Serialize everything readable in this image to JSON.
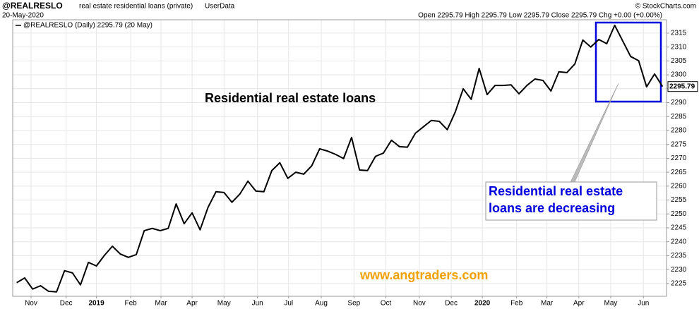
{
  "header": {
    "symbol": "@REALRESLO",
    "description": "real estate residential loans (private)",
    "source": "UserData",
    "date": "20-May-2020",
    "ohlc": "Open 2295.79  High 2295.79  Low 2295.79  Close 2295.79  Chg +0.00 (+0.00%)",
    "credit": "© StockCharts.com"
  },
  "chart_data": {
    "type": "line",
    "series": [
      {
        "name": "@REALRESLO (Daily) 2295.79 (20 May)",
        "color": "#000000",
        "values": [
          2225.3,
          2227,
          2223,
          2224.2,
          2222.2,
          2222,
          2229.6,
          2228.8,
          2224.5,
          2232.6,
          2231.3,
          2235.1,
          2238.4,
          2235.6,
          2234.4,
          2235.4,
          2244,
          2244.8,
          2244,
          2244.8,
          2253.6,
          2246.5,
          2250.4,
          2244.3,
          2252.4,
          2258,
          2257.7,
          2254.2,
          2257.2,
          2261.8,
          2258.2,
          2258,
          2265.6,
          2268.4,
          2262.8,
          2265,
          2264.3,
          2267.3,
          2273.4,
          2272.6,
          2271.4,
          2269.9,
          2277.5,
          2265.8,
          2265.6,
          2270.7,
          2271.9,
          2276.5,
          2274.2,
          2274,
          2279,
          2281.3,
          2283.6,
          2283.3,
          2280.3,
          2286.6,
          2295,
          2291.2,
          2302.3,
          2292.9,
          2296.2,
          2296.2,
          2296.4,
          2293.2,
          2296.2,
          2298.5,
          2298,
          2294.2,
          2301.1,
          2300.8,
          2303.9,
          2312.5,
          2310,
          2312.7,
          2311.2,
          2317.8,
          2312.2,
          2306.6,
          2305.1,
          2295.7,
          2300.3,
          2295.79
        ]
      }
    ],
    "xlim": [
      -0.5,
      81.5
    ],
    "xticks": [
      {
        "value": 1.8,
        "label": "Nov"
      },
      {
        "value": 6.2,
        "label": "Dec"
      },
      {
        "value": 10,
        "label": "2019"
      },
      {
        "value": 14.3,
        "label": "Feb"
      },
      {
        "value": 18.1,
        "label": "Mar"
      },
      {
        "value": 22,
        "label": "Apr"
      },
      {
        "value": 26,
        "label": "May"
      },
      {
        "value": 30.2,
        "label": "Jun"
      },
      {
        "value": 34.1,
        "label": "Jul"
      },
      {
        "value": 38.2,
        "label": "Aug"
      },
      {
        "value": 42.3,
        "label": "Sep"
      },
      {
        "value": 46.3,
        "label": "Oct"
      },
      {
        "value": 50.5,
        "label": "Nov"
      },
      {
        "value": 54.5,
        "label": "Dec"
      },
      {
        "value": 58.4,
        "label": "2020"
      },
      {
        "value": 62.7,
        "label": "Feb"
      },
      {
        "value": 66.5,
        "label": "Mar"
      },
      {
        "value": 70.5,
        "label": "Apr"
      },
      {
        "value": 74.5,
        "label": "May"
      },
      {
        "value": 78.6,
        "label": "Jun"
      }
    ],
    "ylim": [
      2220.4,
      2319.8
    ],
    "yticks": [
      2225,
      2230,
      2235,
      2240,
      2245,
      2250,
      2255,
      2260,
      2265,
      2270,
      2275,
      2280,
      2285,
      2290,
      2295,
      2300,
      2305,
      2310,
      2315
    ],
    "grid": true,
    "annotations": [
      "Residential real estate loans",
      "Residential real estate loans are decreasing",
      "www.angtraders.com"
    ]
  }
}
